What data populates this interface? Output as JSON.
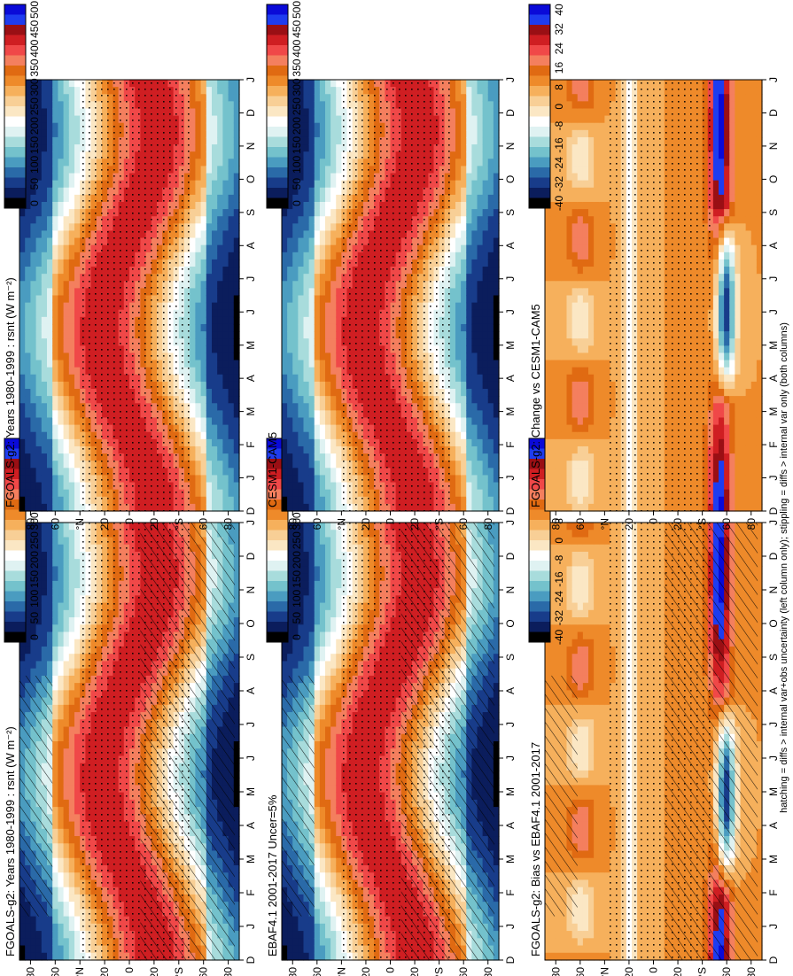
{
  "footer_note": "hatching = diffs > internal var+obs uncertainty (left column only); stippling = diffs > internal var only (both columns)",
  "months": [
    "D",
    "J",
    "F",
    "M",
    "A",
    "M",
    "J",
    "J",
    "A",
    "S",
    "O",
    "N",
    "D",
    "J"
  ],
  "lat_labels": [
    "80",
    "60",
    "°N",
    "20",
    "0",
    "20",
    "°S",
    "60",
    "80"
  ],
  "colorbars": {
    "abs": {
      "labels": [
        "500",
        "450",
        "400",
        "350",
        "300",
        "250",
        "200",
        "150",
        "100",
        "50",
        "0"
      ],
      "colors": [
        "#0a0ad8",
        "#1e3cf0",
        "#9a0f14",
        "#cf1e22",
        "#f04848",
        "#f47f5e",
        "#e06a12",
        "#ee8a2a",
        "#f6b05c",
        "#f8cf96",
        "#fbe7c4",
        "#ffffff",
        "#dff2f2",
        "#a8dcdc",
        "#74c2cc",
        "#4a9cc0",
        "#2a6aa8",
        "#183c8a",
        "#0b1d5c",
        "#000000"
      ]
    },
    "diff": {
      "labels": [
        "40",
        "32",
        "24",
        "16",
        "8",
        "0",
        "-8",
        "-16",
        "-24",
        "-32",
        "-40"
      ],
      "colors": [
        "#0a0ad8",
        "#1e3cf0",
        "#9a0f14",
        "#cf1e22",
        "#f04848",
        "#f47f5e",
        "#e06a12",
        "#ee8a2a",
        "#f6b05c",
        "#f8cf96",
        "#fbe7c4",
        "#ffffff",
        "#dff2f2",
        "#a8dcdc",
        "#74c2cc",
        "#4a9cc0",
        "#2a6aa8",
        "#183c8a",
        "#0b1d5c",
        "#000000"
      ]
    }
  },
  "chart_data": [
    {
      "type": "heatmap",
      "kind": "abs",
      "column": "left",
      "row": 1,
      "title": "FGOALS-g2: Years 1980-1999 : rsnt (W m⁻²)",
      "hatching": true,
      "stippling": true,
      "x": [
        "D",
        "J",
        "F",
        "M",
        "A",
        "M",
        "J",
        "J",
        "A",
        "S",
        "O",
        "N",
        "D",
        "J"
      ],
      "y_ticks": [
        "80",
        "60",
        "°N",
        "20",
        "0",
        "20",
        "°S",
        "60",
        "80"
      ],
      "colorbar_range": [
        0,
        500
      ]
    },
    {
      "type": "heatmap",
      "kind": "abs",
      "column": "right",
      "row": 1,
      "title": "FGOALS-g2: Years 1980-1999 : rsnt (W m⁻²)",
      "hatching": false,
      "stippling": true,
      "x": [
        "D",
        "J",
        "F",
        "M",
        "A",
        "M",
        "J",
        "J",
        "A",
        "S",
        "O",
        "N",
        "D",
        "J"
      ],
      "y_ticks": [
        "80",
        "60",
        "°N",
        "20",
        "0",
        "20",
        "°S",
        "60",
        "80"
      ],
      "colorbar_range": [
        0,
        500
      ]
    },
    {
      "type": "heatmap",
      "kind": "abs",
      "column": "left",
      "row": 2,
      "title": "EBAF4.1 2001-2017 Uncer=5%",
      "hatching": true,
      "stippling": true,
      "x": [
        "D",
        "J",
        "F",
        "M",
        "A",
        "M",
        "J",
        "J",
        "A",
        "S",
        "O",
        "N",
        "D",
        "J"
      ],
      "y_ticks": [
        "80",
        "60",
        "°N",
        "20",
        "0",
        "20",
        "°S",
        "60",
        "80"
      ],
      "colorbar_range": [
        0,
        500
      ]
    },
    {
      "type": "heatmap",
      "kind": "abs",
      "column": "right",
      "row": 2,
      "title": "CESM1-CAM5",
      "hatching": false,
      "stippling": true,
      "x": [
        "D",
        "J",
        "F",
        "M",
        "A",
        "M",
        "J",
        "J",
        "A",
        "S",
        "O",
        "N",
        "D",
        "J"
      ],
      "y_ticks": [
        "80",
        "60",
        "°N",
        "20",
        "0",
        "20",
        "°S",
        "60",
        "80"
      ],
      "colorbar_range": [
        0,
        500
      ]
    },
    {
      "type": "heatmap",
      "kind": "diff",
      "column": "left",
      "row": 3,
      "title": "FGOALS-g2: Bias vs EBAF4.1 2001-2017",
      "hatching": true,
      "stippling": true,
      "x": [
        "D",
        "J",
        "F",
        "M",
        "A",
        "M",
        "J",
        "J",
        "A",
        "S",
        "O",
        "N",
        "D",
        "J"
      ],
      "y_ticks": [
        "80",
        "60",
        "°N",
        "20",
        "0",
        "20",
        "°S",
        "60",
        "80"
      ],
      "colorbar_range": [
        -40,
        40
      ]
    },
    {
      "type": "heatmap",
      "kind": "diff",
      "column": "right",
      "row": 3,
      "title": "FGOALS-g2: Change vs CESM1-CAM5",
      "hatching": false,
      "stippling": true,
      "x": [
        "D",
        "J",
        "F",
        "M",
        "A",
        "M",
        "J",
        "J",
        "A",
        "S",
        "O",
        "N",
        "D",
        "J"
      ],
      "y_ticks": [
        "80",
        "60",
        "°N",
        "20",
        "0",
        "20",
        "°S",
        "60",
        "80"
      ],
      "colorbar_range": [
        -40,
        40
      ]
    }
  ]
}
